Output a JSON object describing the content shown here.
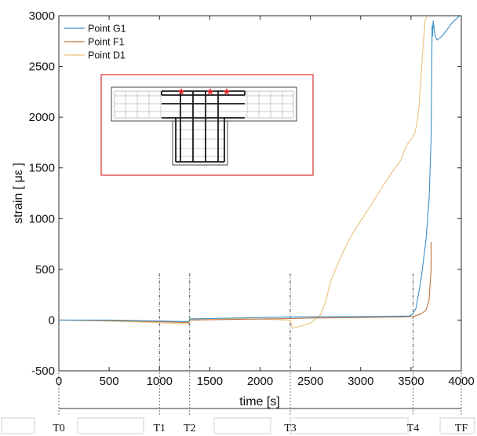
{
  "chart_data": {
    "type": "line",
    "title": "",
    "xlabel": "time [s]",
    "ylabel": "strain [ με ]",
    "xlim": [
      0,
      4000
    ],
    "ylim": [
      -500,
      3000
    ],
    "xticks": [
      0,
      500,
      1000,
      1500,
      2000,
      2500,
      3000,
      3500,
      4000
    ],
    "xtick_labels": [
      "0",
      "500",
      "1000",
      "1500",
      "2000",
      "2500",
      "3000",
      "3500",
      "4000"
    ],
    "yticks": [
      -500,
      0,
      500,
      1000,
      1500,
      2000,
      2500,
      3000
    ],
    "ytick_labels": [
      "-500",
      "0",
      "500",
      "1000",
      "1500",
      "2000",
      "2500",
      "3000"
    ],
    "grid": false,
    "legend_position": "top-left",
    "series": [
      {
        "name": "Point G1",
        "color": "#3b8fc4",
        "x": [
          0,
          500,
          1000,
          1290,
          1300,
          1500,
          2000,
          2300,
          2500,
          3000,
          3300,
          3480,
          3520,
          3550,
          3600,
          3650,
          3680,
          3700,
          3710,
          3715,
          3720,
          3740,
          3760,
          3800,
          3850,
          3900,
          3950,
          3980,
          4000
        ],
        "y": [
          0,
          0,
          -10,
          -15,
          10,
          15,
          25,
          30,
          32,
          35,
          38,
          40,
          60,
          120,
          400,
          800,
          1200,
          1800,
          2900,
          2800,
          2950,
          2800,
          2760,
          2790,
          2850,
          2920,
          2970,
          2995,
          2995
        ]
      },
      {
        "name": "Point F1",
        "color": "#c0703c",
        "x": [
          0,
          500,
          1000,
          1290,
          1300,
          2000,
          2300,
          2500,
          3000,
          3400,
          3520,
          3600,
          3650,
          3680,
          3690,
          3700,
          3700
        ],
        "y": [
          0,
          -5,
          -15,
          -25,
          0,
          10,
          15,
          20,
          25,
          30,
          35,
          60,
          100,
          200,
          350,
          500,
          770
        ]
      },
      {
        "name": "Point D1",
        "color": "#eac27a",
        "x": [
          0,
          500,
          1000,
          1290,
          1300,
          2000,
          2300,
          2320,
          2400,
          2500,
          2600,
          2650,
          2700,
          2800,
          2900,
          3000,
          3100,
          3200,
          3300,
          3400,
          3450,
          3460,
          3500,
          3540,
          3560,
          3580,
          3600,
          3620,
          3640,
          3660
        ],
        "y": [
          0,
          -10,
          -25,
          -40,
          15,
          10,
          0,
          -80,
          -60,
          -30,
          50,
          180,
          380,
          620,
          820,
          980,
          1130,
          1290,
          1440,
          1580,
          1710,
          1730,
          1780,
          1850,
          1950,
          2100,
          2400,
          2700,
          2950,
          3000
        ]
      }
    ],
    "milestones": [
      {
        "label": "T0",
        "x": 0
      },
      {
        "label": "T1",
        "x": 1000
      },
      {
        "label": "T2",
        "x": 1300
      },
      {
        "label": "T3",
        "x": 2300
      },
      {
        "label": "T4",
        "x": 3520
      },
      {
        "label": "TF",
        "x": 4000
      }
    ]
  }
}
